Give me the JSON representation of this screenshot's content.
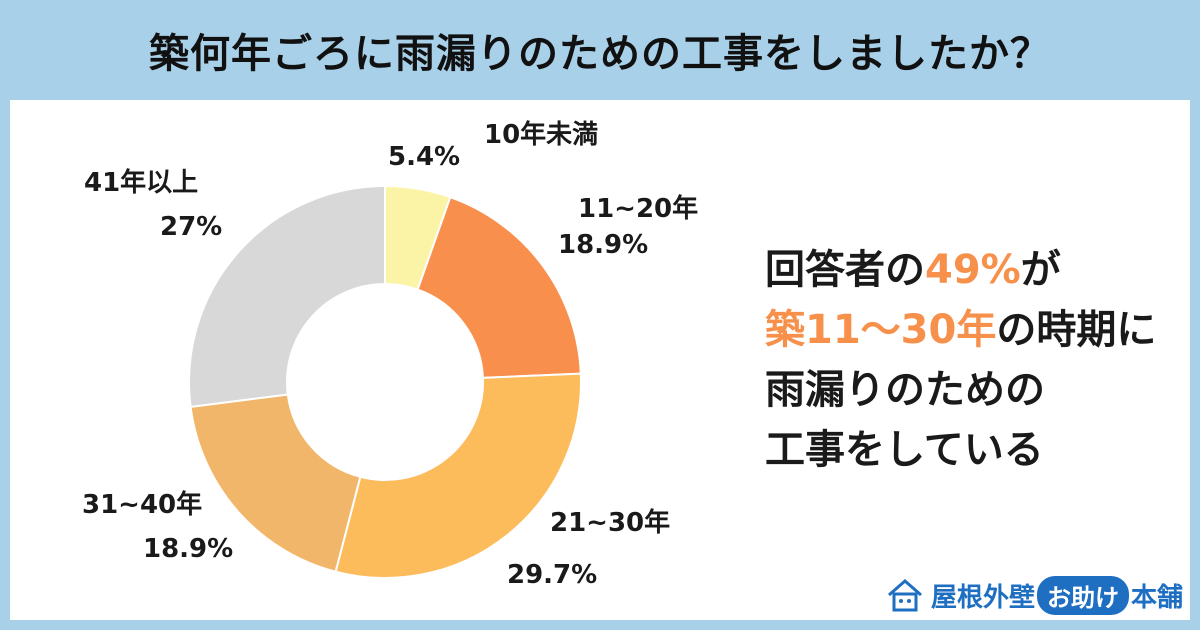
{
  "title": "築何年ごろに雨漏りのための工事をしましたか？",
  "chart_data": {
    "type": "pie",
    "variant": "donut",
    "categories": [
      "10年未満",
      "11~20年",
      "21~30年",
      "31~40年",
      "41年以上"
    ],
    "values": [
      5.4,
      18.9,
      29.7,
      18.9,
      27
    ],
    "value_labels": [
      "5.4%",
      "18.9%",
      "29.7%",
      "18.9%",
      "27%"
    ],
    "colors": [
      "#fbf3a6",
      "#f98f4c",
      "#fdbc5c",
      "#f2b66b",
      "#d8d8d8"
    ]
  },
  "callout": {
    "line1_pre": "回答者の",
    "line1_hl": "49%",
    "line1_post": "が",
    "line2_hl": "築11〜30年",
    "line2_post": "の時期に",
    "line3": "雨漏りのための",
    "line4": "工事をしている"
  },
  "logo": {
    "main": "屋根外壁",
    "pill": "お助け",
    "end": "本舗"
  }
}
